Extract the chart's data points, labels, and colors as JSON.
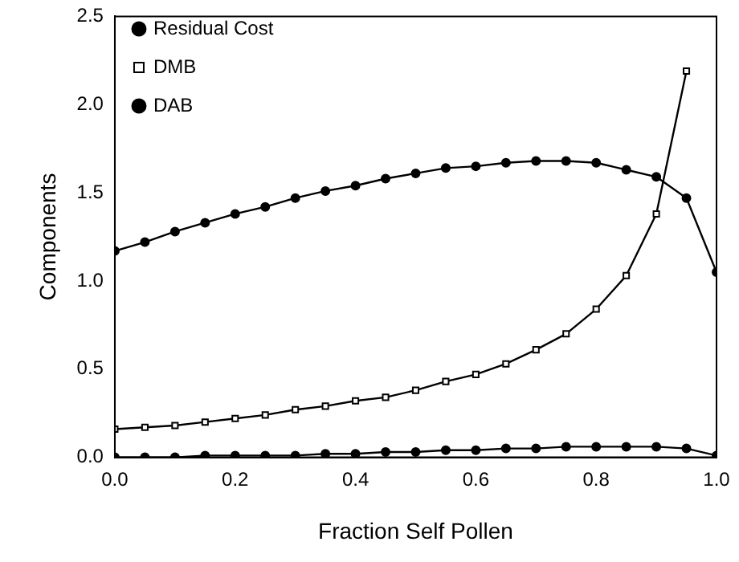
{
  "chart_data": {
    "type": "line",
    "xlabel": "Fraction Self Pollen",
    "ylabel": "Components",
    "x": [
      0,
      0.05,
      0.1,
      0.15,
      0.2,
      0.25,
      0.3,
      0.35,
      0.4,
      0.45,
      0.5,
      0.55,
      0.6,
      0.65,
      0.7,
      0.75,
      0.8,
      0.85,
      0.9,
      0.95,
      1.0
    ],
    "series": [
      {
        "name": "Residual Cost",
        "color": "#000000",
        "marker": "circle",
        "values": [
          1.17,
          1.22,
          1.28,
          1.33,
          1.38,
          1.42,
          1.47,
          1.51,
          1.54,
          1.58,
          1.61,
          1.64,
          1.65,
          1.67,
          1.68,
          1.68,
          1.67,
          1.63,
          1.59,
          1.47,
          1.05
        ]
      },
      {
        "name": "DMB",
        "color": "#000000",
        "marker": "square",
        "values": [
          0.16,
          0.17,
          0.18,
          0.2,
          0.22,
          0.24,
          0.27,
          0.29,
          0.32,
          0.34,
          0.38,
          0.43,
          0.47,
          0.53,
          0.61,
          0.7,
          0.84,
          1.03,
          1.38,
          2.19,
          null
        ]
      },
      {
        "name": "DAB",
        "color": "#000000",
        "marker": "circle",
        "values": [
          0,
          0,
          0,
          0.01,
          0.01,
          0.01,
          0.01,
          0.02,
          0.02,
          0.03,
          0.03,
          0.04,
          0.04,
          0.05,
          0.05,
          0.06,
          0.06,
          0.06,
          0.06,
          0.05,
          0.01
        ]
      }
    ],
    "xlim": [
      0,
      1
    ],
    "xticks": [
      {
        "value": 0,
        "label": "0.0"
      },
      {
        "value": 0.2,
        "label": "0.2"
      },
      {
        "value": 0.4,
        "label": "0.4"
      },
      {
        "value": 0.6,
        "label": "0.6"
      },
      {
        "value": 0.8,
        "label": "0.8"
      },
      {
        "value": 1,
        "label": "1.0"
      }
    ],
    "ylim": [
      0,
      2.5
    ],
    "yticks": [
      {
        "value": 0,
        "label": "0.0"
      },
      {
        "value": 0.5,
        "label": "0.5"
      },
      {
        "value": 1,
        "label": "1.0"
      },
      {
        "value": 1.5,
        "label": "1.5"
      },
      {
        "value": 2,
        "label": "2.0"
      },
      {
        "value": 2.5,
        "label": "2.5"
      }
    ],
    "grid": false,
    "legend": "top left",
    "line_style": "solid"
  }
}
